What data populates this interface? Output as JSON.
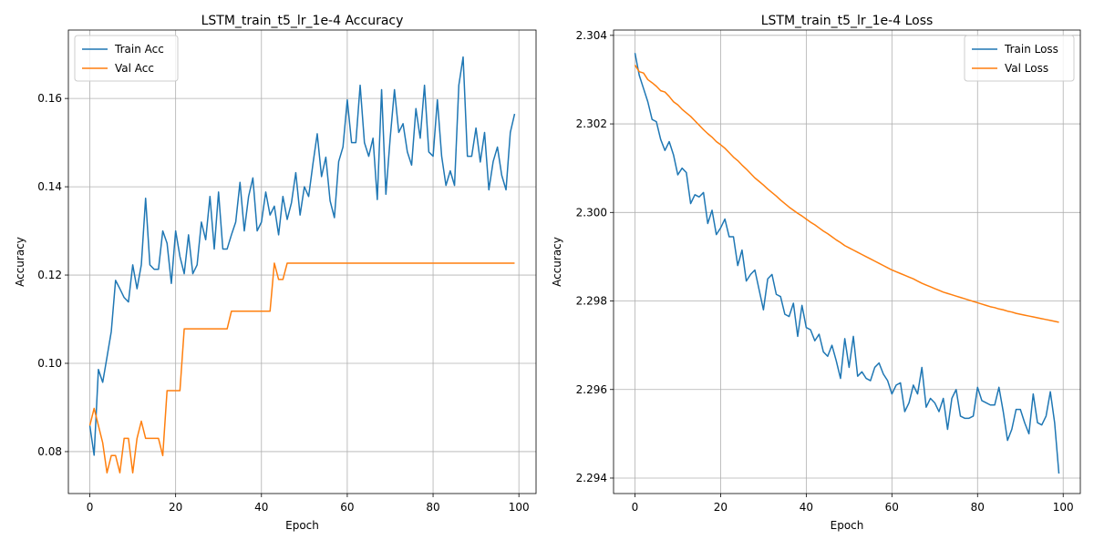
{
  "chart_data": [
    {
      "type": "line",
      "title": "LSTM_train_t5_lr_1e-4 Accuracy",
      "xlabel": "Epoch",
      "ylabel": "Accuracy",
      "xlim": [
        -5,
        104
      ],
      "ylim": [
        0.0705,
        0.1755
      ],
      "xticks": [
        0,
        20,
        40,
        60,
        80,
        100
      ],
      "xtick_labels": [
        "0",
        "20",
        "40",
        "60",
        "80",
        "100"
      ],
      "yticks": [
        0.08,
        0.1,
        0.12,
        0.14,
        0.16
      ],
      "ytick_labels": [
        "0.08",
        "0.10",
        "0.12",
        "0.14",
        "0.16"
      ],
      "grid": true,
      "legend_position": "top-left",
      "x": [
        0,
        1,
        2,
        3,
        4,
        5,
        6,
        7,
        8,
        9,
        10,
        11,
        12,
        13,
        14,
        15,
        16,
        17,
        18,
        19,
        20,
        21,
        22,
        23,
        24,
        25,
        26,
        27,
        28,
        29,
        30,
        31,
        32,
        33,
        34,
        35,
        36,
        37,
        38,
        39,
        40,
        41,
        42,
        43,
        44,
        45,
        46,
        47,
        48,
        49,
        50,
        51,
        52,
        53,
        54,
        55,
        56,
        57,
        58,
        59,
        60,
        61,
        62,
        63,
        64,
        65,
        66,
        67,
        68,
        69,
        70,
        71,
        72,
        73,
        74,
        75,
        76,
        77,
        78,
        79,
        80,
        81,
        82,
        83,
        84,
        85,
        86,
        87,
        88,
        89,
        90,
        91,
        92,
        93,
        94,
        95,
        96,
        97,
        98,
        99
      ],
      "series": [
        {
          "name": "Train Acc",
          "color": "#1f77b4",
          "values": [
            0.0859,
            0.0792,
            0.0986,
            0.0957,
            0.1014,
            0.1072,
            0.1188,
            0.1169,
            0.1149,
            0.1139,
            0.1223,
            0.1169,
            0.1223,
            0.1374,
            0.1223,
            0.1213,
            0.1213,
            0.13,
            0.1272,
            0.1181,
            0.13,
            0.1242,
            0.1203,
            0.1291,
            0.1203,
            0.1223,
            0.132,
            0.128,
            0.1378,
            0.1259,
            0.1388,
            0.1259,
            0.1259,
            0.1291,
            0.132,
            0.141,
            0.13,
            0.1378,
            0.142,
            0.13,
            0.132,
            0.1388,
            0.1336,
            0.1356,
            0.1291,
            0.1378,
            0.1326,
            0.1364,
            0.1432,
            0.1336,
            0.14,
            0.1378,
            0.1452,
            0.152,
            0.1423,
            0.1467,
            0.1368,
            0.133,
            0.1457,
            0.149,
            0.1597,
            0.15,
            0.15,
            0.163,
            0.15,
            0.1469,
            0.151,
            0.1371,
            0.162,
            0.1383,
            0.151,
            0.162,
            0.1523,
            0.1543,
            0.1479,
            0.1449,
            0.1577,
            0.151,
            0.163,
            0.1479,
            0.1469,
            0.1597,
            0.1469,
            0.1403,
            0.1436,
            0.1403,
            0.163,
            0.1694,
            0.1469,
            0.1469,
            0.1533,
            0.1456,
            0.1523,
            0.1393,
            0.1457,
            0.149,
            0.1426,
            0.1393,
            0.1523,
            0.1565
          ]
        },
        {
          "name": "Val Acc",
          "color": "#ff7f0e",
          "values": [
            0.0859,
            0.0898,
            0.0859,
            0.082,
            0.0752,
            0.0791,
            0.0791,
            0.0752,
            0.083,
            0.083,
            0.0752,
            0.083,
            0.0869,
            0.083,
            0.083,
            0.083,
            0.083,
            0.0791,
            0.0938,
            0.0938,
            0.0938,
            0.0938,
            0.1078,
            0.1078,
            0.1078,
            0.1078,
            0.1078,
            0.1078,
            0.1078,
            0.1078,
            0.1078,
            0.1078,
            0.1078,
            0.1118,
            0.1118,
            0.1118,
            0.1118,
            0.1118,
            0.1118,
            0.1118,
            0.1118,
            0.1118,
            0.1118,
            0.1227,
            0.119,
            0.119,
            0.1227,
            0.1227,
            0.1227,
            0.1227,
            0.1227,
            0.1227,
            0.1227,
            0.1227,
            0.1227,
            0.1227,
            0.1227,
            0.1227,
            0.1227,
            0.1227,
            0.1227,
            0.1227,
            0.1227,
            0.1227,
            0.1227,
            0.1227,
            0.1227,
            0.1227,
            0.1227,
            0.1227,
            0.1227,
            0.1227,
            0.1227,
            0.1227,
            0.1227,
            0.1227,
            0.1227,
            0.1227,
            0.1227,
            0.1227,
            0.1227,
            0.1227,
            0.1227,
            0.1227,
            0.1227,
            0.1227,
            0.1227,
            0.1227,
            0.1227,
            0.1227,
            0.1227,
            0.1227,
            0.1227,
            0.1227,
            0.1227,
            0.1227,
            0.1227,
            0.1227,
            0.1227,
            0.1227
          ]
        }
      ]
    },
    {
      "type": "line",
      "title": "LSTM_train_t5_lr_1e-4 Loss",
      "xlabel": "Epoch",
      "ylabel": "Accuracy",
      "xlim": [
        -5,
        104
      ],
      "ylim": [
        2.29365,
        2.30412
      ],
      "xticks": [
        0,
        20,
        40,
        60,
        80,
        100
      ],
      "xtick_labels": [
        "0",
        "20",
        "40",
        "60",
        "80",
        "100"
      ],
      "yticks": [
        2.294,
        2.296,
        2.298,
        2.3,
        2.302,
        2.304
      ],
      "ytick_labels": [
        "2.294",
        "2.296",
        "2.298",
        "2.300",
        "2.302",
        "2.304"
      ],
      "grid": true,
      "legend_position": "top-right",
      "x": [
        0,
        1,
        2,
        3,
        4,
        5,
        6,
        7,
        8,
        9,
        10,
        11,
        12,
        13,
        14,
        15,
        16,
        17,
        18,
        19,
        20,
        21,
        22,
        23,
        24,
        25,
        26,
        27,
        28,
        29,
        30,
        31,
        32,
        33,
        34,
        35,
        36,
        37,
        38,
        39,
        40,
        41,
        42,
        43,
        44,
        45,
        46,
        47,
        48,
        49,
        50,
        51,
        52,
        53,
        54,
        55,
        56,
        57,
        58,
        59,
        60,
        61,
        62,
        63,
        64,
        65,
        66,
        67,
        68,
        69,
        70,
        71,
        72,
        73,
        74,
        75,
        76,
        77,
        78,
        79,
        80,
        81,
        82,
        83,
        84,
        85,
        86,
        87,
        88,
        89,
        90,
        91,
        92,
        93,
        94,
        95,
        96,
        97,
        98,
        99
      ],
      "series": [
        {
          "name": "Train Loss",
          "color": "#1f77b4",
          "values": [
            2.3036,
            2.3031,
            2.3028,
            2.3025,
            2.3021,
            2.30205,
            2.30165,
            2.3014,
            2.3016,
            2.3013,
            2.30085,
            2.301,
            2.3009,
            2.3002,
            2.3004,
            2.30035,
            2.30045,
            2.29975,
            2.30005,
            2.2995,
            2.29965,
            2.29985,
            2.29945,
            2.29945,
            2.2988,
            2.29915,
            2.29845,
            2.2986,
            2.2987,
            2.29825,
            2.2978,
            2.2985,
            2.2986,
            2.29815,
            2.2981,
            2.2977,
            2.29765,
            2.29795,
            2.2972,
            2.2979,
            2.2974,
            2.29735,
            2.2971,
            2.29725,
            2.29685,
            2.29675,
            2.297,
            2.29665,
            2.29625,
            2.29715,
            2.2965,
            2.2972,
            2.2963,
            2.2964,
            2.29625,
            2.2962,
            2.2965,
            2.2966,
            2.29635,
            2.2962,
            2.2959,
            2.2961,
            2.29615,
            2.2955,
            2.2957,
            2.2961,
            2.2959,
            2.2965,
            2.2956,
            2.2958,
            2.2957,
            2.2955,
            2.2958,
            2.2951,
            2.2958,
            2.296,
            2.2954,
            2.29535,
            2.29535,
            2.2954,
            2.29605,
            2.29575,
            2.2957,
            2.29565,
            2.29565,
            2.29605,
            2.2955,
            2.29485,
            2.2951,
            2.29555,
            2.29555,
            2.29525,
            2.295,
            2.2959,
            2.29525,
            2.2952,
            2.2954,
            2.29595,
            2.29525,
            2.2941
          ]
        },
        {
          "name": "Val Loss",
          "color": "#ff7f0e",
          "values": [
            2.30333,
            2.30318,
            2.30315,
            2.303,
            2.30293,
            2.30285,
            2.30275,
            2.30272,
            2.30262,
            2.3025,
            2.30243,
            2.30233,
            2.30225,
            2.30217,
            2.30207,
            2.30197,
            2.30187,
            2.30178,
            2.3017,
            2.3016,
            2.30153,
            2.30145,
            2.30135,
            2.30125,
            2.30117,
            2.30107,
            2.30098,
            2.30088,
            2.30078,
            2.3007,
            2.30062,
            2.30053,
            2.30045,
            2.30037,
            2.30028,
            2.3002,
            2.30012,
            2.30005,
            2.29998,
            2.29992,
            2.29985,
            2.29978,
            2.29972,
            2.29965,
            2.29958,
            2.29952,
            2.29945,
            2.29938,
            2.29932,
            2.29925,
            2.2992,
            2.29915,
            2.2991,
            2.29905,
            2.299,
            2.29895,
            2.2989,
            2.29885,
            2.2988,
            2.29875,
            2.2987,
            2.29866,
            2.29862,
            2.29858,
            2.29854,
            2.2985,
            2.29845,
            2.2984,
            2.29836,
            2.29832,
            2.29828,
            2.29824,
            2.2982,
            2.29817,
            2.29814,
            2.29811,
            2.29808,
            2.29805,
            2.29802,
            2.29799,
            2.29796,
            2.29793,
            2.2979,
            2.29787,
            2.29785,
            2.29782,
            2.2978,
            2.29777,
            2.29775,
            2.29772,
            2.2977,
            2.29768,
            2.29766,
            2.29764,
            2.29762,
            2.2976,
            2.29758,
            2.29756,
            2.29754,
            2.29752
          ]
        }
      ]
    }
  ]
}
